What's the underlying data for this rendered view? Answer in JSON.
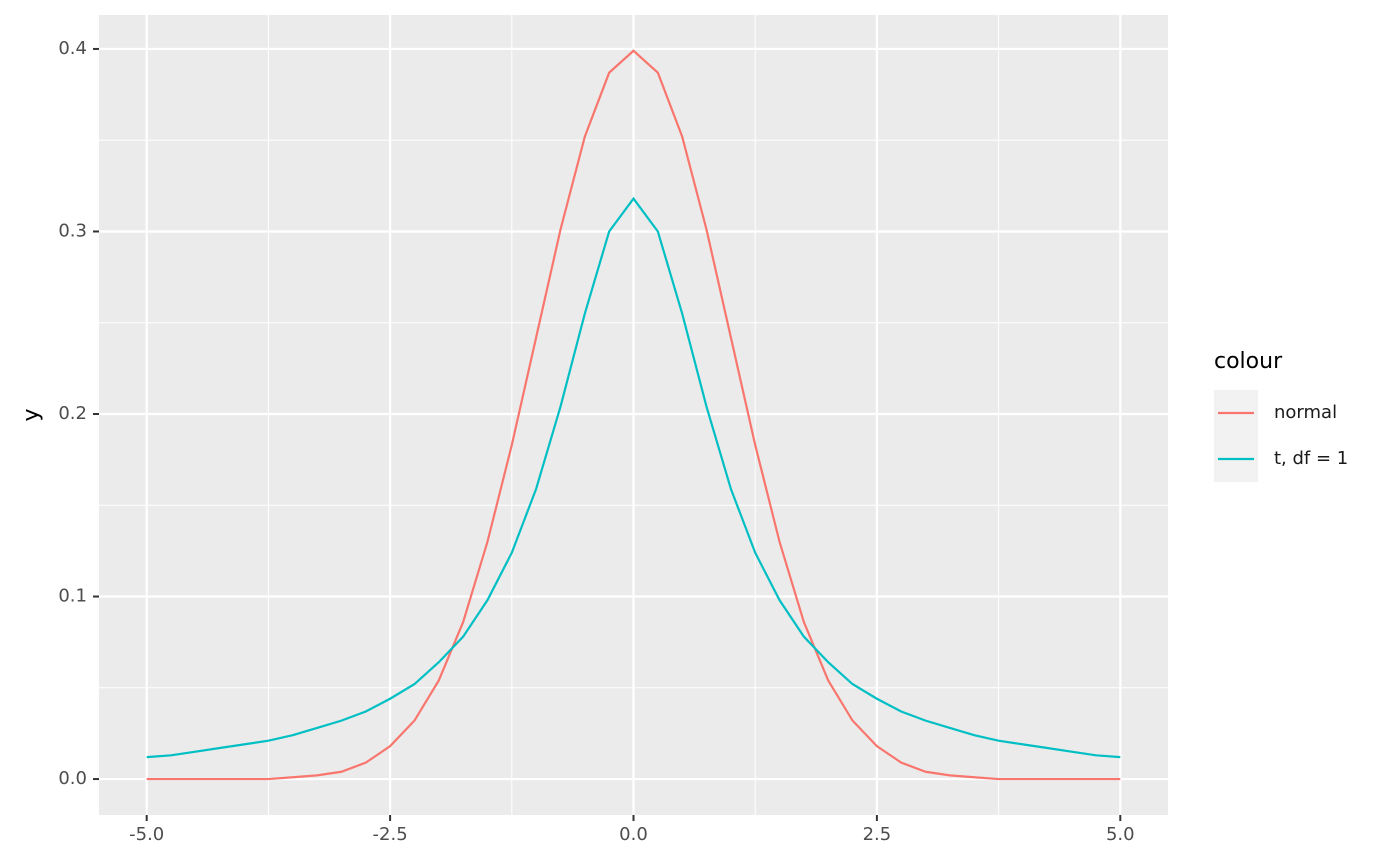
{
  "chart_data": {
    "type": "line",
    "ylabel": "y",
    "legend_title": "colour",
    "legend_position": "right",
    "grid": true,
    "x": [
      -5,
      -4.75,
      -4.5,
      -4.25,
      -4,
      -3.75,
      -3.5,
      -3.25,
      -3,
      -2.75,
      -2.5,
      -2.25,
      -2,
      -1.75,
      -1.5,
      -1.25,
      -1,
      -0.75,
      -0.5,
      -0.25,
      0,
      0.25,
      0.5,
      0.75,
      1,
      1.25,
      1.5,
      1.75,
      2,
      2.25,
      2.5,
      2.75,
      3,
      3.25,
      3.5,
      3.75,
      4,
      4.25,
      4.5,
      4.75,
      5
    ],
    "series": [
      {
        "name": "normal",
        "color": "#f8766d",
        "values": [
          0,
          0,
          0,
          0,
          0,
          0,
          0.001,
          0.002,
          0.004,
          0.009,
          0.018,
          0.032,
          0.054,
          0.086,
          0.13,
          0.183,
          0.242,
          0.301,
          0.352,
          0.387,
          0.399,
          0.387,
          0.352,
          0.301,
          0.242,
          0.183,
          0.13,
          0.086,
          0.054,
          0.032,
          0.018,
          0.009,
          0.004,
          0.002,
          0.001,
          0,
          0,
          0,
          0,
          0,
          0
        ]
      },
      {
        "name": "t, df = 1",
        "color": "#00bfc4",
        "values": [
          0.012,
          0.013,
          0.015,
          0.017,
          0.019,
          0.021,
          0.024,
          0.028,
          0.032,
          0.037,
          0.044,
          0.052,
          0.064,
          0.078,
          0.098,
          0.124,
          0.159,
          0.204,
          0.255,
          0.3,
          0.318,
          0.3,
          0.255,
          0.204,
          0.159,
          0.124,
          0.098,
          0.078,
          0.064,
          0.052,
          0.044,
          0.037,
          0.032,
          0.028,
          0.024,
          0.021,
          0.019,
          0.017,
          0.015,
          0.013,
          0.012
        ]
      }
    ],
    "xlim": [
      -5.49,
      5.49
    ],
    "ylim": [
      -0.0197,
      0.4186
    ],
    "xticks": [
      {
        "value": -5,
        "label": "-5.0"
      },
      {
        "value": -2.5,
        "label": "-2.5"
      },
      {
        "value": 0,
        "label": "0.0"
      },
      {
        "value": 2.5,
        "label": "2.5"
      },
      {
        "value": 5,
        "label": "5.0"
      }
    ],
    "yticks": [
      {
        "value": 0,
        "label": "0.0"
      },
      0.1,
      0.2,
      0.3,
      0.4
    ]
  }
}
